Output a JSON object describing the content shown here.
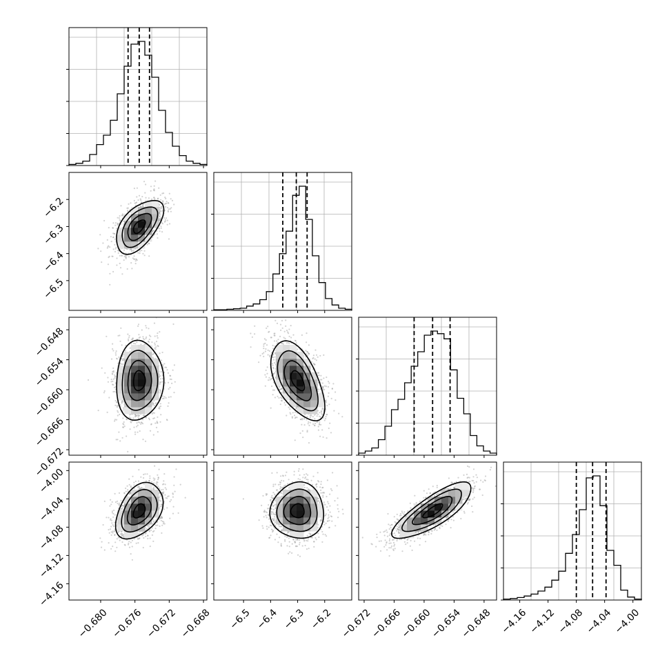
{
  "chart_data": {
    "type": "corner",
    "parameters": [
      {
        "mean": -0.6755,
        "std": 0.00125,
        "lim": [
          -0.6837,
          -0.6676
        ],
        "ticks": [
          -0.68,
          -0.676,
          -0.672,
          -0.668
        ],
        "tick_labels": [
          "−0.680",
          "−0.676",
          "−0.672",
          "−0.668"
        ],
        "quantiles": [
          -0.6768,
          -0.6755,
          -0.6743
        ]
      },
      {
        "mean": -6.3,
        "std": 0.045,
        "lim": [
          -6.61,
          -6.1
        ],
        "ticks": [
          -6.5,
          -6.4,
          -6.3,
          -6.2
        ],
        "tick_labels": [
          "−6.5",
          "−6.4",
          "−6.3",
          "−6.2"
        ],
        "quantiles": [
          -6.355,
          -6.305,
          -6.265
        ]
      },
      {
        "mean": -0.6582,
        "std": 0.0036,
        "lim": [
          -0.6731,
          -0.6455
        ],
        "ticks": [
          -0.672,
          -0.666,
          -0.66,
          -0.654,
          -0.648
        ],
        "tick_labels": [
          "−0.672",
          "−0.666",
          "−0.660",
          "−0.654",
          "−0.648"
        ],
        "quantiles": [
          -0.662,
          -0.6583,
          -0.6548
        ]
      },
      {
        "mean": -4.057,
        "std": 0.018,
        "lim": [
          -4.183,
          -3.988
        ],
        "ticks": [
          -4.16,
          -4.12,
          -4.08,
          -4.04,
          -4.0
        ],
        "tick_labels": [
          "−4.16",
          "−4.12",
          "−4.08",
          "−4.04",
          "−4.00"
        ],
        "quantiles": [
          -4.08,
          -4.057,
          -4.038
        ]
      }
    ],
    "correlations": [
      {
        "row": 1,
        "col": 0,
        "r": 0.55
      },
      {
        "row": 2,
        "col": 0,
        "r": 0.05
      },
      {
        "row": 2,
        "col": 1,
        "r": -0.55
      },
      {
        "row": 3,
        "col": 0,
        "r": 0.4
      },
      {
        "row": 3,
        "col": 1,
        "r": 0.0
      },
      {
        "row": 3,
        "col": 2,
        "r": 0.8
      }
    ],
    "histograms": [
      {
        "param": 0,
        "counts": [
          2,
          4,
          8,
          20,
          38,
          55,
          82,
          130,
          180,
          220,
          225,
          200,
          160,
          100,
          60,
          35,
          18,
          8,
          4,
          2
        ]
      },
      {
        "param": 1,
        "counts": [
          1,
          1,
          2,
          3,
          4,
          8,
          12,
          20,
          35,
          68,
          106,
          148,
          215,
          232,
          170,
          102,
          52,
          22,
          10,
          4,
          2
        ]
      },
      {
        "param": 2,
        "counts": [
          4,
          8,
          14,
          30,
          56,
          88,
          108,
          140,
          172,
          200,
          232,
          240,
          235,
          225,
          165,
          110,
          80,
          38,
          18,
          8,
          4
        ]
      },
      {
        "param": 3,
        "counts": [
          2,
          3,
          5,
          8,
          12,
          18,
          26,
          40,
          58,
          94,
          132,
          182,
          246,
          250,
          190,
          100,
          70,
          20,
          6,
          2
        ]
      }
    ],
    "contour_levels_sigma": [
      0.5,
      1.0,
      1.5,
      2.0
    ],
    "grid": true
  }
}
